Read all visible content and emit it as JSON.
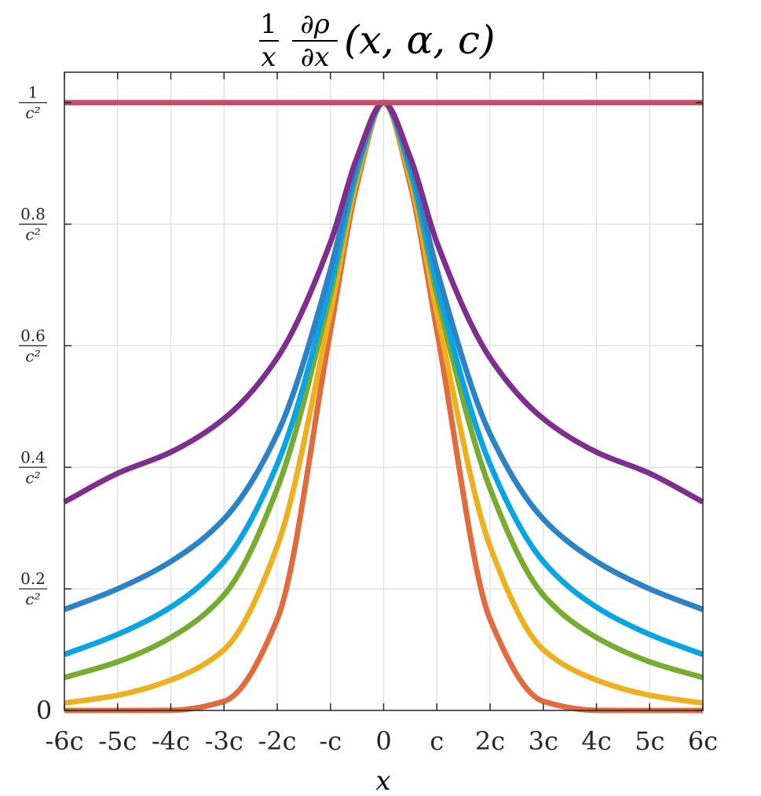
{
  "chart_data": {
    "type": "line",
    "title": {
      "frac1_num": "1",
      "frac1_den": "x",
      "frac2_num": "∂ρ",
      "frac2_den": "∂x",
      "args": "(x, α, c)"
    },
    "xlabel": "x",
    "ylabel": "",
    "xlim": [
      -6,
      6
    ],
    "ylim": [
      0,
      1.05
    ],
    "grid": true,
    "legend": "none",
    "x_ticks": [
      {
        "value": -6,
        "label": "-6c"
      },
      {
        "value": -5,
        "label": "-5c"
      },
      {
        "value": -4,
        "label": "-4c"
      },
      {
        "value": -3,
        "label": "-3c"
      },
      {
        "value": -2,
        "label": "-2c"
      },
      {
        "value": -1,
        "label": "-c"
      },
      {
        "value": 0,
        "label": "0"
      },
      {
        "value": 1,
        "label": "c"
      },
      {
        "value": 2,
        "label": "2c"
      },
      {
        "value": 3,
        "label": "3c"
      },
      {
        "value": 4,
        "label": "4c"
      },
      {
        "value": 5,
        "label": "5c"
      },
      {
        "value": 6,
        "label": "6c"
      }
    ],
    "y_ticks": [
      {
        "value": 0,
        "num": "0",
        "den": ""
      },
      {
        "value": 0.2,
        "num": "0.2",
        "den": "c²"
      },
      {
        "value": 0.4,
        "num": "0.4",
        "den": "c²"
      },
      {
        "value": 0.6,
        "num": "0.6",
        "den": "c²"
      },
      {
        "value": 0.8,
        "num": "0.8",
        "den": "c²"
      },
      {
        "value": 1.0,
        "num": "1",
        "den": "c²"
      }
    ],
    "x": [
      -6,
      -5,
      -4,
      -3,
      -2,
      -1,
      -0.5,
      0,
      0.5,
      1,
      2,
      3,
      4,
      5,
      6
    ],
    "series": [
      {
        "color": "#c44d6a",
        "values": [
          1.0,
          1.0,
          1.0,
          1.0,
          1.0,
          1.0,
          1.0,
          1.0,
          1.0,
          1.0,
          1.0,
          1.0,
          1.0,
          1.0,
          1.0
        ]
      },
      {
        "color": "#7e2f8e",
        "values": [
          0.343,
          0.39,
          0.425,
          0.48,
          0.58,
          0.77,
          0.91,
          1.0,
          0.91,
          0.77,
          0.58,
          0.48,
          0.425,
          0.39,
          0.343
        ]
      },
      {
        "color": "#2b83c5",
        "values": [
          0.166,
          0.2,
          0.245,
          0.315,
          0.455,
          0.725,
          0.9,
          1.0,
          0.9,
          0.725,
          0.455,
          0.315,
          0.245,
          0.2,
          0.166
        ]
      },
      {
        "color": "#0aa4e4",
        "values": [
          0.092,
          0.125,
          0.17,
          0.245,
          0.405,
          0.7,
          0.89,
          1.0,
          0.89,
          0.7,
          0.405,
          0.245,
          0.17,
          0.125,
          0.092
        ]
      },
      {
        "color": "#77ac30",
        "values": [
          0.054,
          0.08,
          0.12,
          0.19,
          0.365,
          0.685,
          0.885,
          1.0,
          0.885,
          0.685,
          0.365,
          0.19,
          0.12,
          0.08,
          0.054
        ]
      },
      {
        "color": "#edb120",
        "values": [
          0.012,
          0.025,
          0.05,
          0.1,
          0.27,
          0.655,
          0.875,
          1.0,
          0.875,
          0.655,
          0.27,
          0.1,
          0.05,
          0.025,
          0.012
        ]
      },
      {
        "color": "#e06b3c",
        "values": [
          0.0,
          0.0,
          0.0002,
          0.015,
          0.15,
          0.625,
          0.865,
          1.0,
          0.865,
          0.625,
          0.15,
          0.015,
          0.0002,
          0.0,
          0.0
        ]
      }
    ]
  }
}
